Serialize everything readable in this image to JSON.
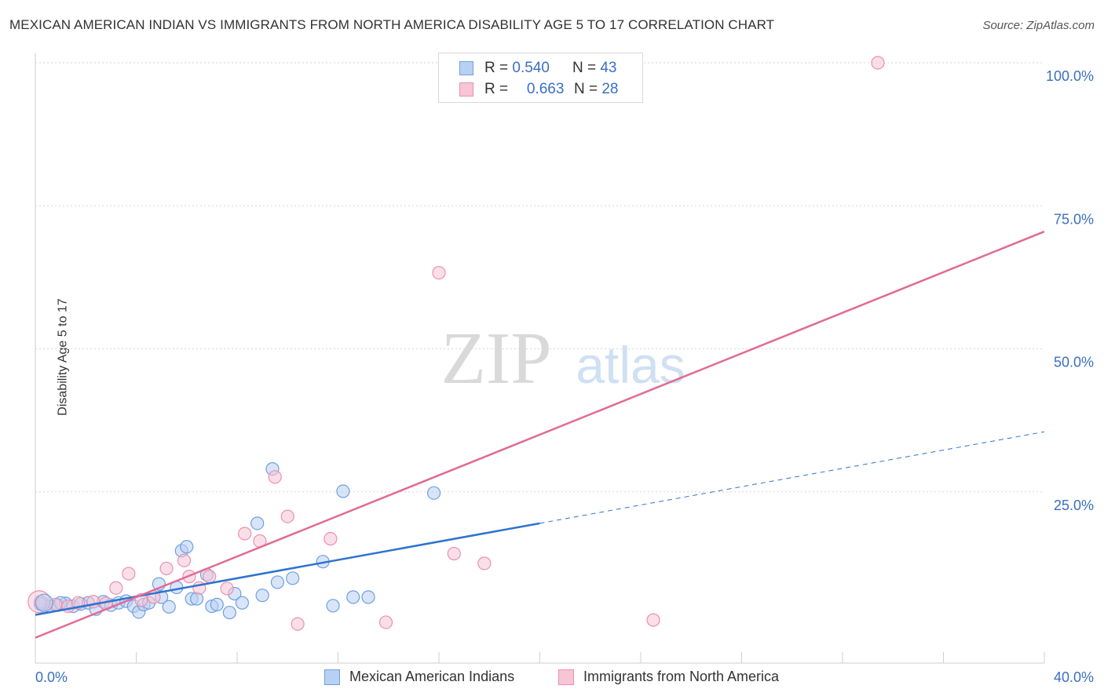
{
  "chart_data": {
    "type": "scatter",
    "title": "MEXICAN AMERICAN INDIAN VS IMMIGRANTS FROM NORTH AMERICA DISABILITY AGE 5 TO 17 CORRELATION CHART",
    "source": "Source: ZipAtlas.com",
    "ylabel": "Disability Age 5 to 17",
    "xlabel": "",
    "xlim": [
      0,
      40
    ],
    "ylim": [
      0,
      100
    ],
    "x_tick_labels": [
      "0.0%",
      "40.0%"
    ],
    "y_tick_labels": [
      "100.0%",
      "75.0%",
      "50.0%",
      "25.0%"
    ],
    "y_ticks": [
      100,
      75,
      50,
      25
    ],
    "watermark": {
      "zip": "ZIP",
      "atlas": "atlas"
    },
    "legend": {
      "rows": [
        {
          "r_label": "R =",
          "r_value": "0.540",
          "n_label": "N =",
          "n_value": "43"
        },
        {
          "r_label": "R =",
          "r_value": "0.663",
          "n_label": "N =",
          "n_value": "28"
        }
      ]
    },
    "series": [
      {
        "name": "Mexican American Indians",
        "color": "#6fa0e0",
        "fill": "#b8d0f3",
        "line_color": "#2f73d0",
        "trend": {
          "x0": 0,
          "y0": 3.5,
          "x1": 20,
          "y1": 19.5,
          "dash_to_x": 40,
          "dash_to_y": 35.5
        },
        "points": [
          [
            0.3,
            5.5
          ],
          [
            0.6,
            5.0
          ],
          [
            0.9,
            5.2
          ],
          [
            1.2,
            5.5
          ],
          [
            1.5,
            5.0
          ],
          [
            1.8,
            5.4
          ],
          [
            2.1,
            5.6
          ],
          [
            2.4,
            4.5
          ],
          [
            2.7,
            5.8
          ],
          [
            3.0,
            5.2
          ],
          [
            3.3,
            5.6
          ],
          [
            3.6,
            5.9
          ],
          [
            3.9,
            5.0
          ],
          [
            4.1,
            4.0
          ],
          [
            4.3,
            5.3
          ],
          [
            4.5,
            5.6
          ],
          [
            5.0,
            6.6
          ],
          [
            4.9,
            8.9
          ],
          [
            5.3,
            4.9
          ],
          [
            5.6,
            8.3
          ],
          [
            5.8,
            14.7
          ],
          [
            6.0,
            15.4
          ],
          [
            6.2,
            6.3
          ],
          [
            6.4,
            6.3
          ],
          [
            6.8,
            10.5
          ],
          [
            7.0,
            5.0
          ],
          [
            7.2,
            5.3
          ],
          [
            7.7,
            3.9
          ],
          [
            7.9,
            7.2
          ],
          [
            8.2,
            5.6
          ],
          [
            8.8,
            19.5
          ],
          [
            9.0,
            6.9
          ],
          [
            9.4,
            29.0
          ],
          [
            9.6,
            9.2
          ],
          [
            10.2,
            9.9
          ],
          [
            11.4,
            12.8
          ],
          [
            11.8,
            5.1
          ],
          [
            12.2,
            25.1
          ],
          [
            12.6,
            6.6
          ],
          [
            13.2,
            6.6
          ],
          [
            15.8,
            24.8
          ],
          [
            0.2,
            5.4
          ],
          [
            1.0,
            5.6
          ]
        ]
      },
      {
        "name": "Immigrants from North America",
        "color": "#ec8fae",
        "fill": "#f8c5d5",
        "line_color": "#e06b94",
        "trend": {
          "x0": 0,
          "y0": -0.5,
          "x1": 40,
          "y1": 70.5
        },
        "points": [
          [
            0.2,
            5.8
          ],
          [
            0.8,
            5.3
          ],
          [
            1.3,
            5.0
          ],
          [
            1.7,
            5.6
          ],
          [
            2.3,
            5.8
          ],
          [
            2.8,
            5.5
          ],
          [
            3.2,
            8.2
          ],
          [
            3.7,
            10.7
          ],
          [
            4.2,
            6.1
          ],
          [
            4.7,
            6.6
          ],
          [
            5.2,
            11.6
          ],
          [
            5.9,
            13.0
          ],
          [
            6.1,
            10.2
          ],
          [
            6.5,
            8.2
          ],
          [
            6.9,
            10.2
          ],
          [
            7.6,
            8.1
          ],
          [
            8.3,
            17.7
          ],
          [
            8.9,
            16.4
          ],
          [
            9.5,
            27.6
          ],
          [
            10.0,
            20.7
          ],
          [
            10.4,
            1.9
          ],
          [
            11.7,
            16.8
          ],
          [
            13.9,
            2.2
          ],
          [
            16.0,
            63.3
          ],
          [
            16.6,
            14.2
          ],
          [
            17.8,
            12.5
          ],
          [
            24.5,
            2.6
          ],
          [
            33.4,
            100.0
          ]
        ]
      }
    ]
  }
}
